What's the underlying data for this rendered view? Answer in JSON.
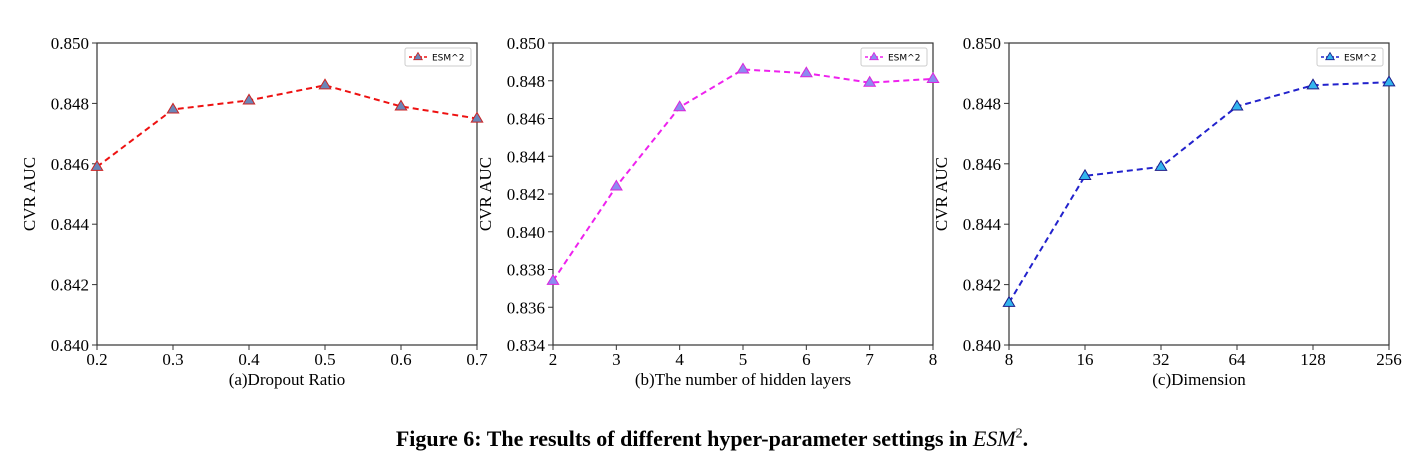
{
  "caption": {
    "prefix": "Figure 6: The results of different hyper-parameter settings in ",
    "model": "ESM",
    "superscript": "2",
    "suffix": "."
  },
  "chart_data": [
    {
      "type": "line",
      "title": "",
      "xlabel": "(a)Dropout Ratio",
      "ylabel": "CVR AUC",
      "categories": [
        "0.2",
        "0.3",
        "0.4",
        "0.5",
        "0.6",
        "0.7"
      ],
      "ylim": [
        0.84,
        0.85
      ],
      "yticks": [
        "0.840",
        "0.842",
        "0.844",
        "0.846",
        "0.848",
        "0.850"
      ],
      "legend_position": "top-right",
      "series": [
        {
          "name": "ESM^2",
          "values": [
            0.8459,
            0.8478,
            0.8481,
            0.8486,
            0.8479,
            0.8475
          ],
          "line_color": "#ee1111",
          "marker_fill": "#6a86b8",
          "marker_edge": "#cc2222"
        }
      ]
    },
    {
      "type": "line",
      "title": "",
      "xlabel": "(b)The number of hidden layers",
      "ylabel": "CVR AUC",
      "categories": [
        "2",
        "3",
        "4",
        "5",
        "6",
        "7",
        "8"
      ],
      "ylim": [
        0.834,
        0.85
      ],
      "yticks": [
        "0.834",
        "0.836",
        "0.838",
        "0.840",
        "0.842",
        "0.844",
        "0.846",
        "0.848",
        "0.850"
      ],
      "legend_position": "top-right",
      "series": [
        {
          "name": "ESM^2",
          "values": [
            0.8374,
            0.8424,
            0.8466,
            0.8486,
            0.8484,
            0.8479,
            0.8481
          ],
          "line_color": "#ee22ee",
          "marker_fill": "#8c8cf0",
          "marker_edge": "#dd22dd"
        }
      ]
    },
    {
      "type": "line",
      "title": "",
      "xlabel": "(c)Dimension",
      "ylabel": "CVR AUC",
      "categories": [
        "8",
        "16",
        "32",
        "64",
        "128",
        "256"
      ],
      "ylim": [
        0.84,
        0.85
      ],
      "yticks": [
        "0.840",
        "0.842",
        "0.844",
        "0.846",
        "0.848",
        "0.850"
      ],
      "legend_position": "top-right",
      "series": [
        {
          "name": "ESM^2",
          "values": [
            0.8414,
            0.8456,
            0.8459,
            0.8479,
            0.8486,
            0.8487
          ],
          "line_color": "#2222cc",
          "marker_fill": "#33b5ee",
          "marker_edge": "#1a1a88"
        }
      ]
    }
  ]
}
